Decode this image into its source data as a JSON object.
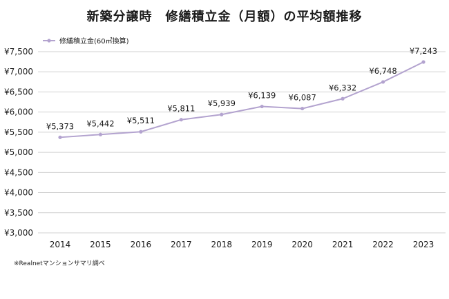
{
  "title": "新築分譲時　修繕積立金（月額）の平均額推移",
  "note": "※Realnetマンションサマリ調べ",
  "colors": {
    "series": "#b3a3cf",
    "grid": "#d0d0d0",
    "text": "#1a1a1a"
  },
  "chart_data": {
    "type": "line",
    "categories": [
      "2014",
      "2015",
      "2016",
      "2017",
      "2018",
      "2019",
      "2020",
      "2021",
      "2022",
      "2023"
    ],
    "series": [
      {
        "name": "修繕積立金(60㎡換算)",
        "values": [
          5373,
          5442,
          5511,
          5811,
          5939,
          6139,
          6087,
          6332,
          6748,
          7243
        ],
        "labels": [
          "¥5,373",
          "¥5,442",
          "¥5,511",
          "¥5,811",
          "¥5,939",
          "¥6,139",
          "¥6,087",
          "¥6,332",
          "¥6,748",
          "¥7,243"
        ]
      }
    ],
    "ylim": [
      3000,
      7500
    ],
    "yticks": [
      3000,
      3500,
      4000,
      4500,
      5000,
      5500,
      6000,
      6500,
      7000,
      7500
    ],
    "ytick_labels": [
      "¥3,000",
      "¥3,500",
      "¥4,000",
      "¥4,500",
      "¥5,000",
      "¥5,500",
      "¥6,000",
      "¥6,500",
      "¥7,000",
      "¥7,500"
    ],
    "xlabel": "",
    "ylabel": "",
    "grid": true,
    "legend": "top-left"
  }
}
